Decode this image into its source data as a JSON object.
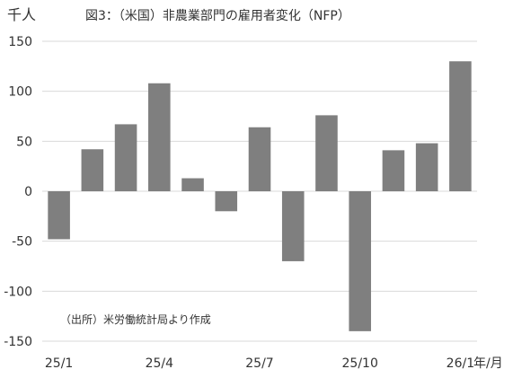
{
  "chart_data": {
    "type": "bar",
    "title": "図3：（米国）非農業部門の雇用者変化（NFP）",
    "ylabel": "千人",
    "xlabel": "年/月",
    "ylim": [
      -150,
      150
    ],
    "yticks": [
      150,
      100,
      50,
      0,
      -50,
      -100,
      -150
    ],
    "categories": [
      "25/1",
      "25/2",
      "25/3",
      "25/4",
      "25/5",
      "25/6",
      "25/7",
      "25/8",
      "25/9",
      "25/10",
      "25/11",
      "25/12",
      "26/1"
    ],
    "xtick_labels": [
      "25/1",
      "25/4",
      "25/7",
      "25/10",
      "26/1"
    ],
    "values": [
      -48,
      42,
      67,
      108,
      13,
      -20,
      64,
      -70,
      76,
      -140,
      41,
      48,
      130
    ],
    "bar_color": "#7f7f7f",
    "grid": true,
    "legend": "none",
    "source_note": "（出所）米労働統計局より作成"
  }
}
